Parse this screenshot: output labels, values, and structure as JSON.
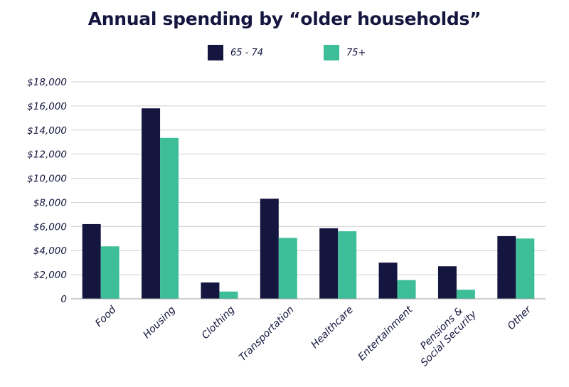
{
  "chart_data": {
    "type": "bar",
    "title": "Annual spending by “older households”",
    "xlabel": "",
    "ylabel": "",
    "categories": [
      "Food",
      "Housing",
      "Clothing",
      "Transportation",
      "Healthcare",
      "Entertainment",
      "Pensions & Social Security",
      "Other"
    ],
    "category_label_lines": [
      [
        "Food"
      ],
      [
        "Housing"
      ],
      [
        "Clothing"
      ],
      [
        "Transportation"
      ],
      [
        "Healthcare"
      ],
      [
        "Entertainment"
      ],
      [
        "Pensions &",
        "Social Security"
      ],
      [
        "Other"
      ]
    ],
    "series": [
      {
        "name": "65 - 74",
        "color": "#15163f",
        "values": [
          6200,
          15800,
          1350,
          8300,
          5850,
          3000,
          2700,
          5200
        ]
      },
      {
        "name": "75+",
        "color": "#3dbd98",
        "values": [
          4350,
          13350,
          600,
          5050,
          5600,
          1550,
          750,
          5000
        ]
      }
    ],
    "ylim": [
      0,
      18000
    ],
    "yticks": [
      0,
      2000,
      4000,
      6000,
      8000,
      10000,
      12000,
      14000,
      16000,
      18000
    ],
    "ytick_labels": [
      "0",
      "$2,000",
      "$4,000",
      "$6,000",
      "$8,000",
      "$10,000",
      "$12,000",
      "$14,000",
      "$16,000",
      "$18,000"
    ],
    "grid": true,
    "legend_position": "top-center"
  }
}
